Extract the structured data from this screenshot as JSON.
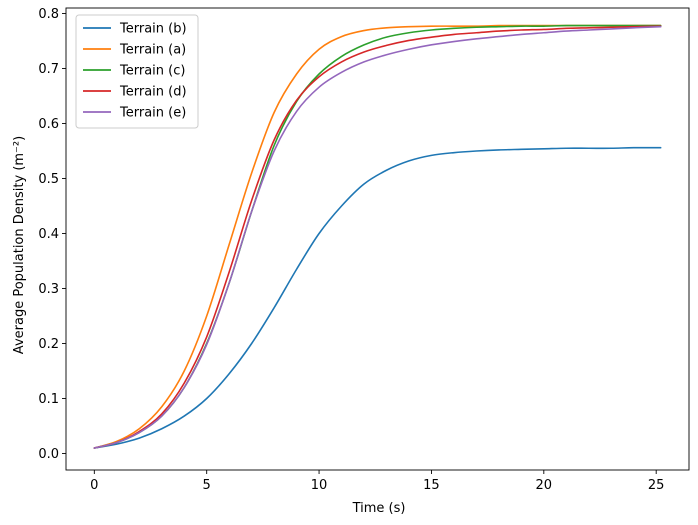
{
  "chart_data": {
    "type": "line",
    "title": "",
    "xlabel": "Time (s)",
    "ylabel": "Average Population Density (m⁻²)",
    "xlim": [
      -1.26,
      26.46
    ],
    "ylim": [
      -0.03,
      0.81
    ],
    "xticks": [
      0,
      5,
      10,
      15,
      20,
      25
    ],
    "yticks": [
      0.0,
      0.1,
      0.2,
      0.3,
      0.4,
      0.5,
      0.6,
      0.7,
      0.8
    ],
    "xtick_labels": [
      "0",
      "5",
      "10",
      "15",
      "20",
      "25"
    ],
    "ytick_labels": [
      "0.0",
      "0.1",
      "0.2",
      "0.3",
      "0.4",
      "0.5",
      "0.6",
      "0.7",
      "0.8"
    ],
    "grid": false,
    "legend_position": "upper-left",
    "series": [
      {
        "name": "Terrain (b)",
        "color": "#1f77b4",
        "x": [
          0,
          1,
          2,
          3,
          4,
          5,
          6,
          7,
          8,
          9,
          10,
          11,
          12,
          13,
          14,
          15,
          16,
          17,
          18,
          19,
          20,
          21,
          22,
          23,
          24,
          25.2
        ],
        "y": [
          0.01,
          0.017,
          0.028,
          0.045,
          0.068,
          0.1,
          0.145,
          0.2,
          0.265,
          0.335,
          0.4,
          0.45,
          0.49,
          0.515,
          0.532,
          0.542,
          0.547,
          0.55,
          0.552,
          0.553,
          0.554,
          0.555,
          0.555,
          0.555,
          0.556,
          0.556
        ]
      },
      {
        "name": "Terrain (a)",
        "color": "#ff7f0e",
        "x": [
          0,
          1,
          2,
          3,
          4,
          5,
          6,
          7,
          8,
          9,
          10,
          11,
          12,
          13,
          14,
          15,
          16,
          17,
          18,
          19,
          20,
          21,
          22,
          23,
          24,
          25.2
        ],
        "y": [
          0.01,
          0.022,
          0.045,
          0.085,
          0.15,
          0.25,
          0.38,
          0.51,
          0.62,
          0.69,
          0.735,
          0.758,
          0.769,
          0.774,
          0.776,
          0.777,
          0.777,
          0.777,
          0.778,
          0.778,
          0.778,
          0.778,
          0.778,
          0.778,
          0.778,
          0.778
        ]
      },
      {
        "name": "Terrain (c)",
        "color": "#2ca02c",
        "x": [
          0,
          1,
          2,
          3,
          4,
          5,
          6,
          7,
          8,
          9,
          10,
          11,
          12,
          13,
          14,
          15,
          16,
          17,
          18,
          19,
          20,
          21,
          22,
          23,
          24,
          25.2
        ],
        "y": [
          0.01,
          0.02,
          0.038,
          0.068,
          0.12,
          0.2,
          0.31,
          0.44,
          0.56,
          0.64,
          0.69,
          0.722,
          0.743,
          0.757,
          0.765,
          0.77,
          0.773,
          0.775,
          0.776,
          0.777,
          0.777,
          0.778,
          0.778,
          0.778,
          0.778,
          0.778
        ]
      },
      {
        "name": "Terrain (d)",
        "color": "#d62728",
        "x": [
          0,
          1,
          2,
          3,
          4,
          5,
          6,
          7,
          8,
          9,
          10,
          11,
          12,
          13,
          14,
          15,
          16,
          17,
          18,
          19,
          20,
          21,
          22,
          23,
          24,
          25.2
        ],
        "y": [
          0.01,
          0.02,
          0.04,
          0.072,
          0.128,
          0.212,
          0.33,
          0.46,
          0.57,
          0.642,
          0.685,
          0.712,
          0.73,
          0.742,
          0.751,
          0.757,
          0.762,
          0.765,
          0.768,
          0.77,
          0.771,
          0.773,
          0.774,
          0.775,
          0.776,
          0.777
        ]
      },
      {
        "name": "Terrain (e)",
        "color": "#9467bd",
        "x": [
          0,
          1,
          2,
          3,
          4,
          5,
          6,
          7,
          8,
          9,
          10,
          11,
          12,
          13,
          14,
          15,
          16,
          17,
          18,
          19,
          20,
          21,
          22,
          23,
          24,
          25.2
        ],
        "y": [
          0.01,
          0.02,
          0.038,
          0.068,
          0.12,
          0.198,
          0.31,
          0.44,
          0.55,
          0.622,
          0.666,
          0.693,
          0.712,
          0.725,
          0.735,
          0.743,
          0.749,
          0.754,
          0.758,
          0.762,
          0.765,
          0.768,
          0.77,
          0.772,
          0.774,
          0.776
        ]
      }
    ]
  }
}
